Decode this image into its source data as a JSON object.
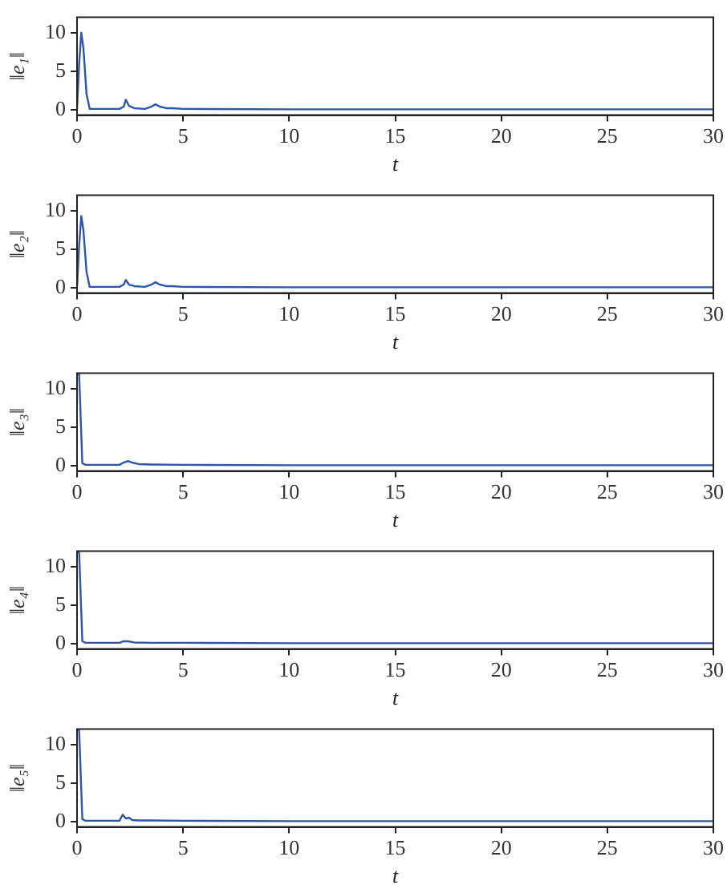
{
  "chart_data": [
    {
      "type": "line",
      "xlabel": "t",
      "ylabel": "‖e₁‖",
      "xlim": [
        0,
        30
      ],
      "ylim": [
        -0.7,
        12
      ],
      "xticks": [
        0,
        5,
        10,
        15,
        20,
        25,
        30
      ],
      "yticks": [
        0,
        5,
        10
      ],
      "grid": false,
      "legend": false,
      "marker": "none",
      "series": [
        {
          "color": "#2e55a8",
          "x": [
            0,
            0.1,
            0.2,
            0.3,
            0.45,
            0.6,
            2,
            2.2,
            2.3,
            2.45,
            2.7,
            3.2,
            3.5,
            3.7,
            3.9,
            4.2,
            4.5,
            5,
            10,
            30
          ],
          "values": [
            0,
            6,
            10,
            8,
            2,
            0.1,
            0.1,
            0.4,
            1.3,
            0.5,
            0.2,
            0.1,
            0.4,
            0.7,
            0.4,
            0.2,
            0.2,
            0.1,
            0.05,
            0.05
          ]
        }
      ]
    },
    {
      "type": "line",
      "xlabel": "t",
      "ylabel": "‖e₂‖",
      "xlim": [
        0,
        30
      ],
      "ylim": [
        -0.7,
        12
      ],
      "xticks": [
        0,
        5,
        10,
        15,
        20,
        25,
        30
      ],
      "yticks": [
        0,
        5,
        10
      ],
      "grid": false,
      "legend": false,
      "marker": "none",
      "series": [
        {
          "color": "#2e55a8",
          "x": [
            0,
            0.1,
            0.2,
            0.3,
            0.45,
            0.6,
            2,
            2.2,
            2.3,
            2.45,
            2.7,
            3.2,
            3.5,
            3.7,
            3.9,
            4.2,
            4.5,
            5,
            10,
            30
          ],
          "values": [
            0,
            5.5,
            9.3,
            7.5,
            2,
            0.1,
            0.1,
            0.4,
            1,
            0.4,
            0.2,
            0.1,
            0.4,
            0.7,
            0.4,
            0.2,
            0.2,
            0.1,
            0.05,
            0.05
          ]
        }
      ]
    },
    {
      "type": "line",
      "xlabel": "t",
      "ylabel": "‖e₃‖",
      "xlim": [
        0,
        30
      ],
      "ylim": [
        -0.7,
        12
      ],
      "xticks": [
        0,
        5,
        10,
        15,
        20,
        25,
        30
      ],
      "yticks": [
        0,
        5,
        10
      ],
      "grid": false,
      "legend": false,
      "marker": "none",
      "series": [
        {
          "color": "#2e55a8",
          "x": [
            0,
            0.1,
            0.25,
            0.4,
            2,
            2.2,
            2.4,
            2.6,
            2.9,
            3.5,
            5,
            10,
            30
          ],
          "values": [
            12,
            11.8,
            0.3,
            0.1,
            0.1,
            0.4,
            0.6,
            0.4,
            0.2,
            0.15,
            0.1,
            0.05,
            0.05
          ]
        }
      ]
    },
    {
      "type": "line",
      "xlabel": "t",
      "ylabel": "‖e₄‖",
      "xlim": [
        0,
        30
      ],
      "ylim": [
        -0.7,
        12
      ],
      "xticks": [
        0,
        5,
        10,
        15,
        20,
        25,
        30
      ],
      "yticks": [
        0,
        5,
        10
      ],
      "grid": false,
      "legend": false,
      "marker": "none",
      "series": [
        {
          "color": "#2e55a8",
          "x": [
            0,
            0.1,
            0.25,
            0.4,
            2,
            2.2,
            2.4,
            2.7,
            3.5,
            5,
            10,
            30
          ],
          "values": [
            12,
            11.8,
            0.3,
            0.1,
            0.1,
            0.3,
            0.3,
            0.15,
            0.1,
            0.1,
            0.05,
            0.05
          ]
        }
      ]
    },
    {
      "type": "line",
      "xlabel": "t",
      "ylabel": "‖e₅‖",
      "xlim": [
        0,
        30
      ],
      "ylim": [
        -0.7,
        12
      ],
      "xticks": [
        0,
        5,
        10,
        15,
        20,
        25,
        30
      ],
      "yticks": [
        0,
        5,
        10
      ],
      "grid": false,
      "legend": false,
      "marker": "none",
      "series": [
        {
          "color": "#2e55a8",
          "x": [
            0,
            0.1,
            0.25,
            0.4,
            2,
            2.15,
            2.3,
            2.45,
            2.6,
            2.9,
            3.5,
            5,
            10,
            30
          ],
          "values": [
            12,
            11.8,
            0.3,
            0.1,
            0.1,
            0.9,
            0.4,
            0.5,
            0.2,
            0.15,
            0.15,
            0.1,
            0.05,
            0.05
          ]
        }
      ]
    }
  ]
}
